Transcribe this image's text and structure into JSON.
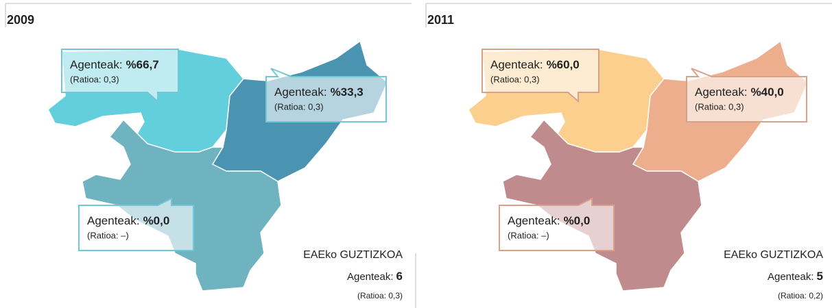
{
  "panels": [
    {
      "year": "2009",
      "regions": [
        {
          "label": "Agenteak:",
          "value": "%66,7",
          "ratio": "(Ratioa: 0,3)",
          "color": "#63cfdc"
        },
        {
          "label": "Agenteak:",
          "value": "%33,3",
          "ratio": "(Ratioa: 0,3)",
          "color": "#4a93b1"
        },
        {
          "label": "Agenteak:",
          "value": "%0,0",
          "ratio": "(Ratioa: –)",
          "color": "#6fb2c0"
        }
      ],
      "border": "#6fc8d4",
      "total": {
        "title": "EAEko GUZTIZKOA",
        "label": "Agenteak:",
        "value": 6,
        "ratio": "(Ratioa: 0,3)"
      }
    },
    {
      "year": "2011",
      "regions": [
        {
          "label": "Agenteak:",
          "value": "%60,0",
          "ratio": "(Ratioa: 0,3)",
          "color": "#fbd08f"
        },
        {
          "label": "Agenteak:",
          "value": "%40,0",
          "ratio": "(Ratioa: 0,3)",
          "color": "#ecae8c"
        },
        {
          "label": "Agenteak:",
          "value": "%0,0",
          "ratio": "(Ratioa: –)",
          "color": "#c08b8c"
        }
      ],
      "border": "#d9a08a",
      "total": {
        "title": "EAEko GUZTIZKOA",
        "label": "Agenteak:",
        "value": 5,
        "ratio": "(Ratioa: 0,2)"
      }
    }
  ]
}
